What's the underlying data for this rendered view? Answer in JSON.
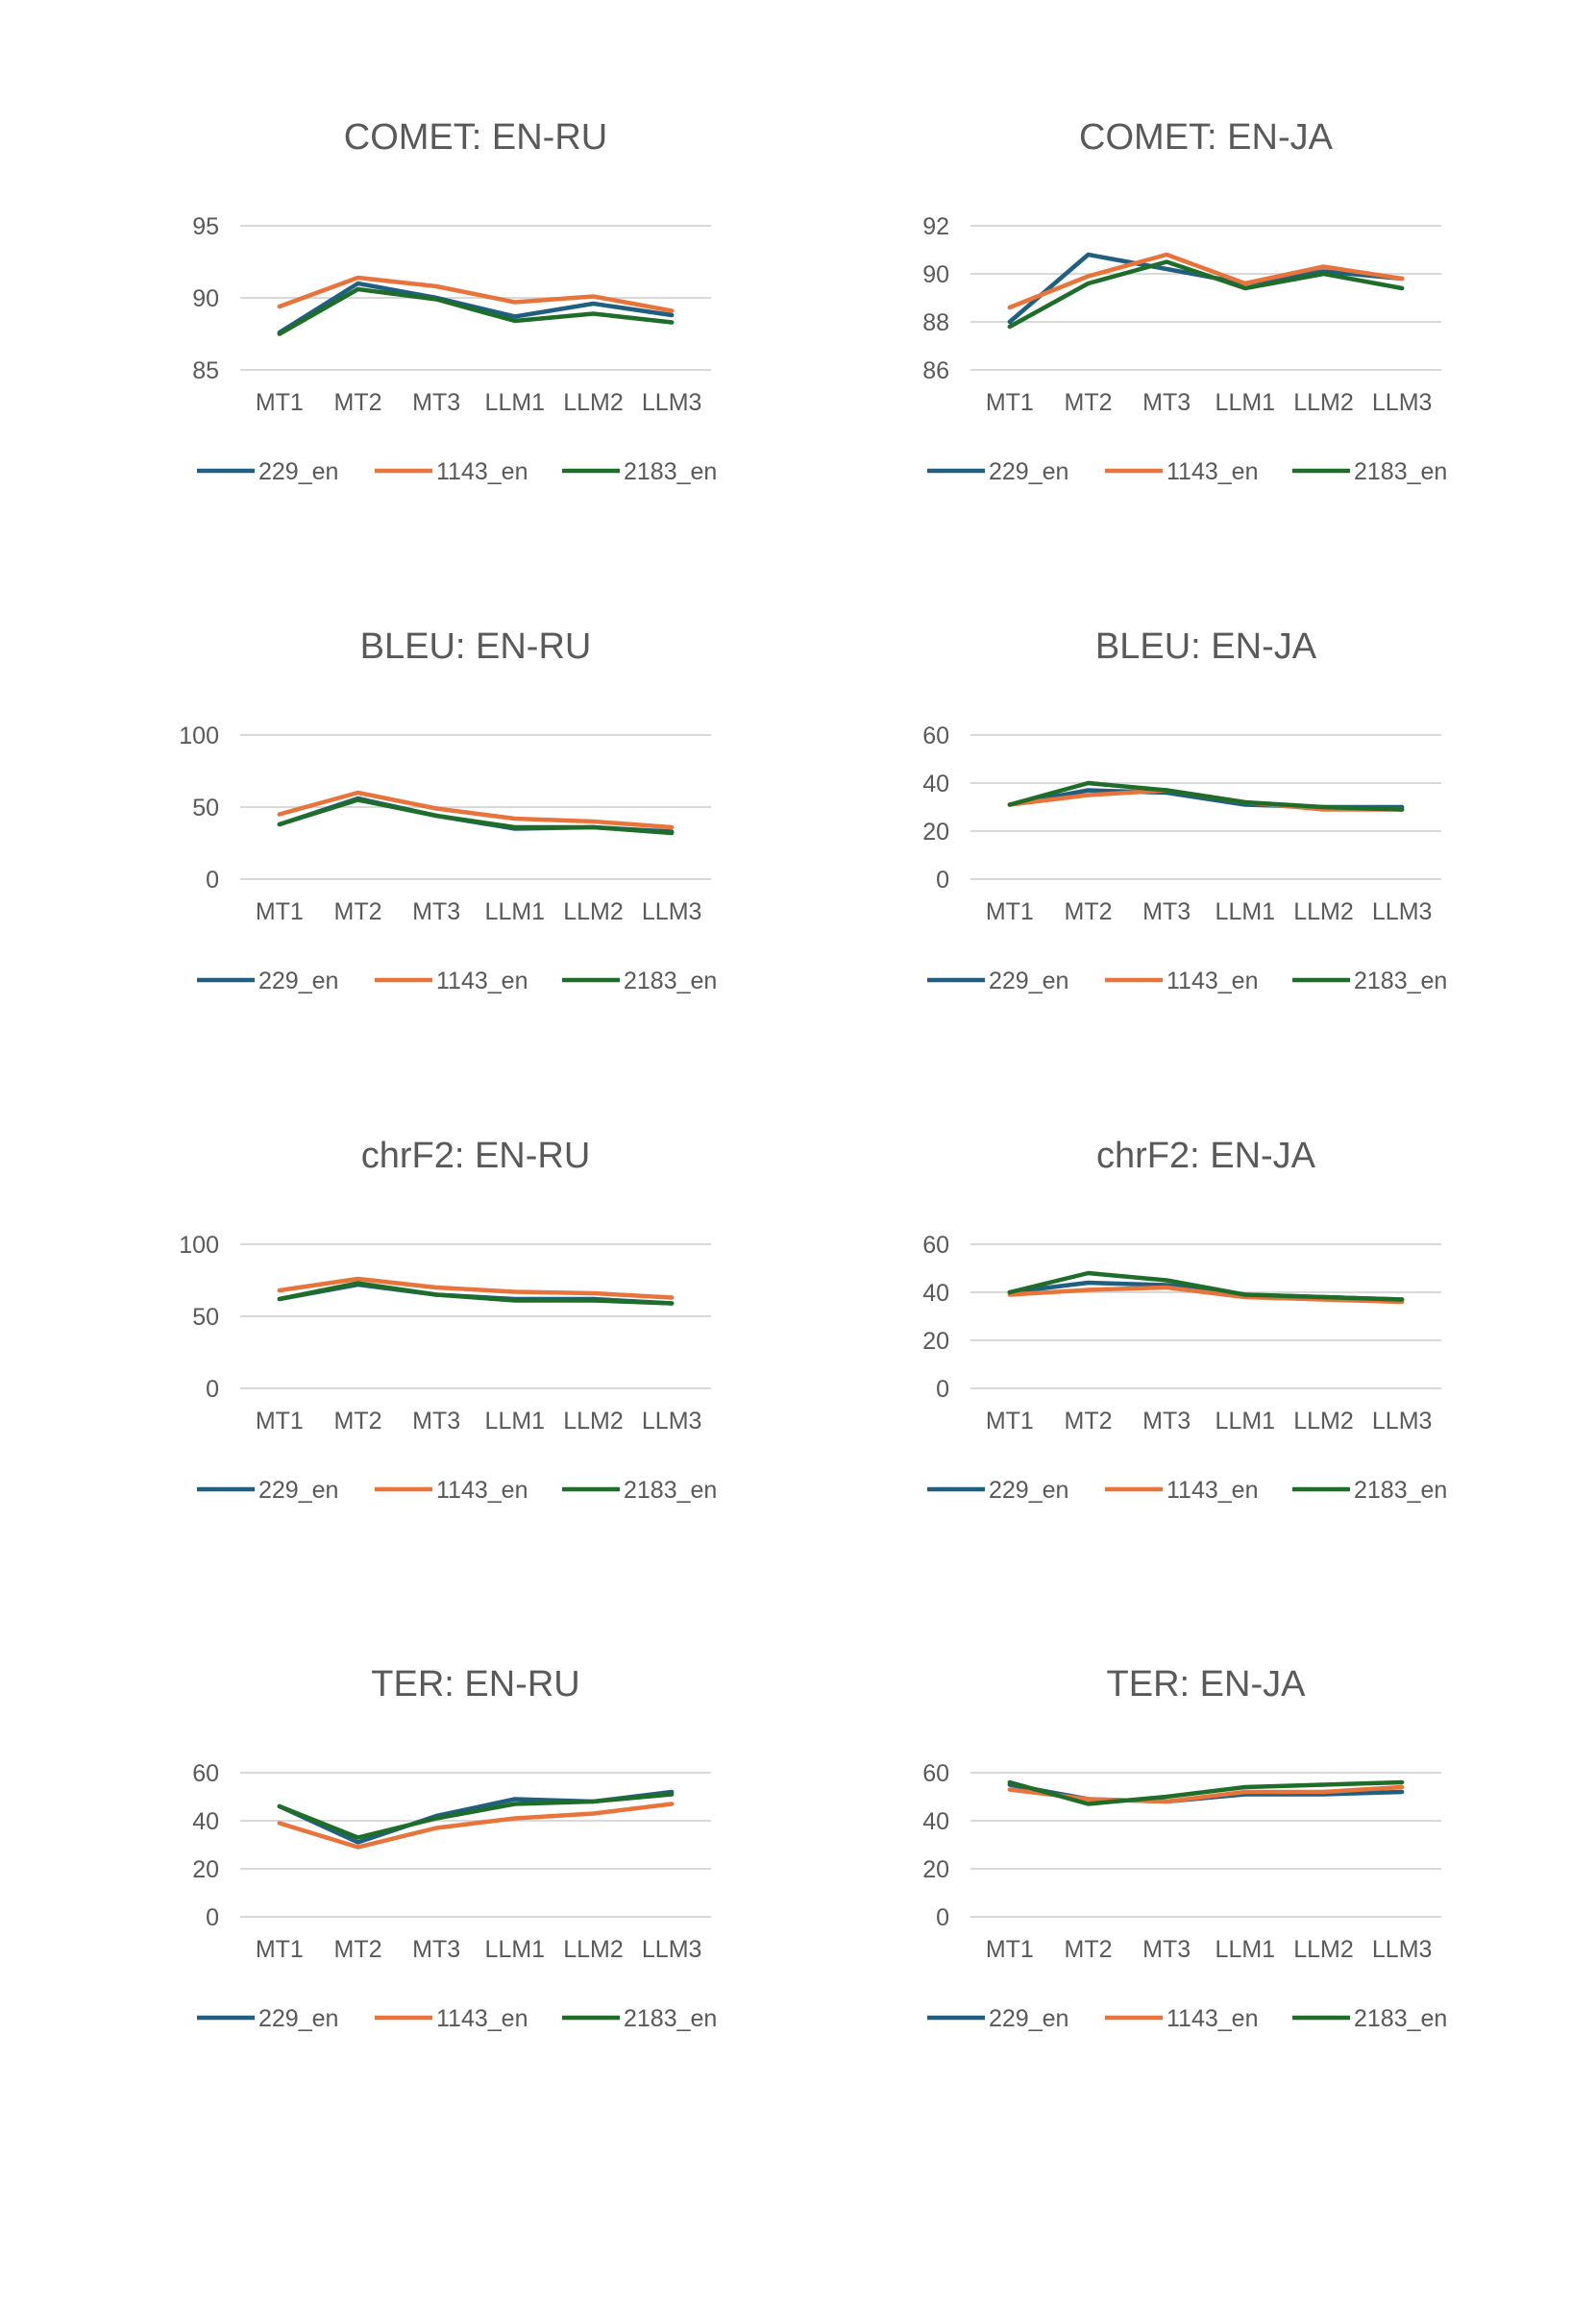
{
  "colors": {
    "s229": "#1f5f7f",
    "s1143": "#e8743b",
    "s2183": "#1e6e2a",
    "grid": "#d9d9d9",
    "text": "#595959"
  },
  "chart_data": [
    {
      "type": "line",
      "title": "COMET: EN-RU",
      "categories": [
        "MT1",
        "MT2",
        "MT3",
        "LLM1",
        "LLM2",
        "LLM3"
      ],
      "ylim": [
        85,
        95
      ],
      "yticks": [
        85,
        90,
        95
      ],
      "series": [
        {
          "name": "229_en",
          "values": [
            87.6,
            91.0,
            90.0,
            88.7,
            89.6,
            88.8
          ]
        },
        {
          "name": "1143_en",
          "values": [
            89.4,
            91.4,
            90.8,
            89.7,
            90.1,
            89.1
          ]
        },
        {
          "name": "2183_en",
          "values": [
            87.5,
            90.6,
            89.9,
            88.4,
            88.9,
            88.3
          ]
        }
      ]
    },
    {
      "type": "line",
      "title": "COMET: EN-JA",
      "categories": [
        "MT1",
        "MT2",
        "MT3",
        "LLM1",
        "LLM2",
        "LLM3"
      ],
      "ylim": [
        86,
        92
      ],
      "yticks": [
        86,
        88,
        90,
        92
      ],
      "series": [
        {
          "name": "229_en",
          "values": [
            88.0,
            90.8,
            90.2,
            89.6,
            90.1,
            89.8
          ]
        },
        {
          "name": "1143_en",
          "values": [
            88.6,
            89.9,
            90.8,
            89.6,
            90.3,
            89.8
          ]
        },
        {
          "name": "2183_en",
          "values": [
            87.8,
            89.6,
            90.5,
            89.4,
            90.0,
            89.4
          ]
        }
      ]
    },
    {
      "type": "line",
      "title": "BLEU: EN-RU",
      "categories": [
        "MT1",
        "MT2",
        "MT3",
        "LLM1",
        "LLM2",
        "LLM3"
      ],
      "ylim": [
        0,
        100
      ],
      "yticks": [
        0,
        50,
        100
      ],
      "series": [
        {
          "name": "229_en",
          "values": [
            38,
            56,
            44,
            35,
            36,
            33
          ]
        },
        {
          "name": "1143_en",
          "values": [
            45,
            60,
            49,
            42,
            40,
            36
          ]
        },
        {
          "name": "2183_en",
          "values": [
            38,
            55,
            44,
            36,
            36,
            32
          ]
        }
      ]
    },
    {
      "type": "line",
      "title": "BLEU: EN-JA",
      "categories": [
        "MT1",
        "MT2",
        "MT3",
        "LLM1",
        "LLM2",
        "LLM3"
      ],
      "ylim": [
        0,
        60
      ],
      "yticks": [
        0,
        20,
        40,
        60
      ],
      "series": [
        {
          "name": "229_en",
          "values": [
            31,
            37,
            36,
            31,
            30,
            30
          ]
        },
        {
          "name": "1143_en",
          "values": [
            31,
            35,
            37,
            32,
            29,
            29
          ]
        },
        {
          "name": "2183_en",
          "values": [
            31,
            40,
            37,
            32,
            30,
            29
          ]
        }
      ]
    },
    {
      "type": "line",
      "title": "chrF2: EN-RU",
      "categories": [
        "MT1",
        "MT2",
        "MT3",
        "LLM1",
        "LLM2",
        "LLM3"
      ],
      "ylim": [
        0,
        100
      ],
      "yticks": [
        0,
        50,
        100
      ],
      "series": [
        {
          "name": "229_en",
          "values": [
            62,
            72,
            65,
            62,
            62,
            59
          ]
        },
        {
          "name": "1143_en",
          "values": [
            68,
            76,
            70,
            67,
            66,
            63
          ]
        },
        {
          "name": "2183_en",
          "values": [
            62,
            73,
            65,
            61,
            61,
            59
          ]
        }
      ]
    },
    {
      "type": "line",
      "title": "chrF2: EN-JA",
      "categories": [
        "MT1",
        "MT2",
        "MT3",
        "LLM1",
        "LLM2",
        "LLM3"
      ],
      "ylim": [
        0,
        60
      ],
      "yticks": [
        0,
        20,
        40,
        60
      ],
      "series": [
        {
          "name": "229_en",
          "values": [
            40,
            44,
            43,
            39,
            38,
            37
          ]
        },
        {
          "name": "1143_en",
          "values": [
            39,
            41,
            42,
            38,
            37,
            36
          ]
        },
        {
          "name": "2183_en",
          "values": [
            40,
            48,
            45,
            39,
            38,
            37
          ]
        }
      ]
    },
    {
      "type": "line",
      "title": "TER: EN-RU",
      "categories": [
        "MT1",
        "MT2",
        "MT3",
        "LLM1",
        "LLM2",
        "LLM3"
      ],
      "ylim": [
        0,
        60
      ],
      "yticks": [
        0,
        20,
        40,
        60
      ],
      "series": [
        {
          "name": "229_en",
          "values": [
            46,
            31,
            42,
            49,
            48,
            52
          ]
        },
        {
          "name": "1143_en",
          "values": [
            39,
            29,
            37,
            41,
            43,
            47
          ]
        },
        {
          "name": "2183_en",
          "values": [
            46,
            33,
            41,
            47,
            48,
            51
          ]
        }
      ]
    },
    {
      "type": "line",
      "title": "TER: EN-JA",
      "categories": [
        "MT1",
        "MT2",
        "MT3",
        "LLM1",
        "LLM2",
        "LLM3"
      ],
      "ylim": [
        0,
        60
      ],
      "yticks": [
        0,
        20,
        40,
        60
      ],
      "series": [
        {
          "name": "229_en",
          "values": [
            55,
            49,
            48,
            51,
            51,
            52
          ]
        },
        {
          "name": "1143_en",
          "values": [
            53,
            49,
            48,
            52,
            52,
            54
          ]
        },
        {
          "name": "2183_en",
          "values": [
            56,
            47,
            50,
            54,
            55,
            56
          ]
        }
      ]
    }
  ]
}
